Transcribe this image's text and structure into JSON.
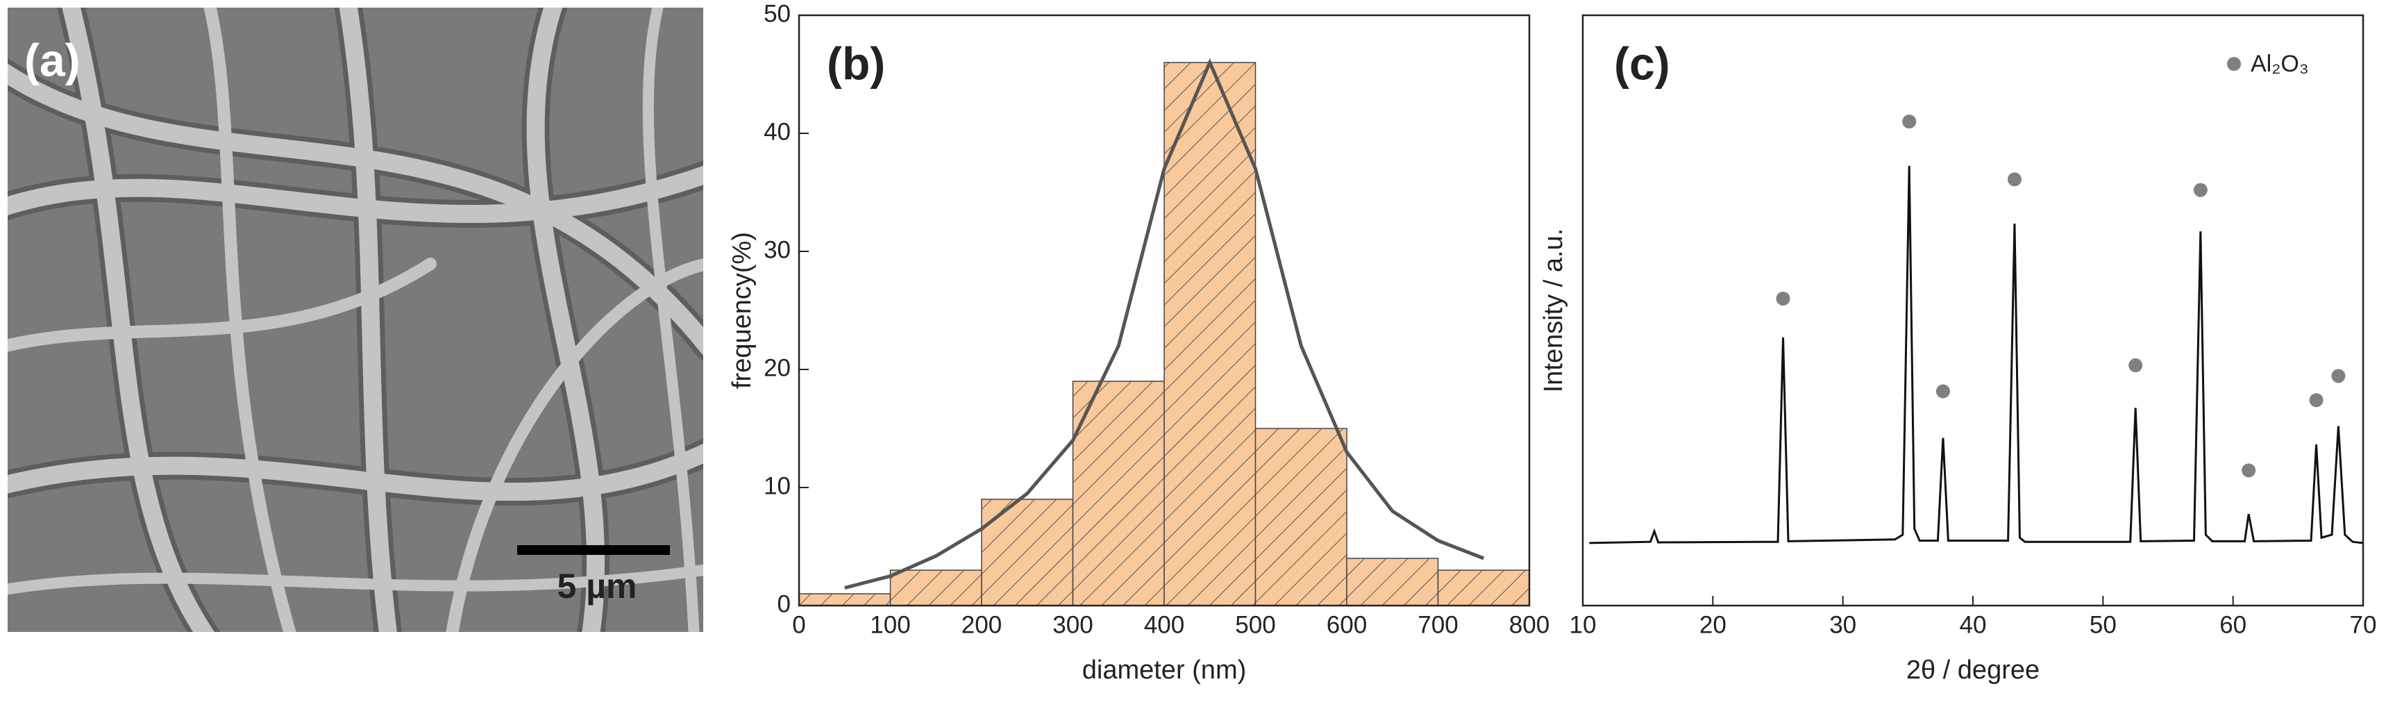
{
  "chart_data": [
    {
      "type": "image",
      "label": "(a)",
      "scale_bar": "5 µm"
    },
    {
      "type": "histogram",
      "label": "(b)",
      "x_label": "diameter (nm)",
      "y_label": "frequency(%)",
      "bins": [
        0,
        100,
        200,
        300,
        400,
        500,
        600,
        700,
        800
      ],
      "values": [
        1,
        3,
        9,
        19,
        46,
        15,
        4,
        3
      ],
      "color": "#f9c89b",
      "fit": {
        "color": "#555555",
        "x": [
          50,
          100,
          150,
          200,
          250,
          300,
          350,
          400,
          450,
          500,
          550,
          600,
          650,
          700,
          750
        ],
        "values": [
          1.5,
          2.5,
          4.2,
          6.5,
          9.5,
          14,
          22,
          37,
          46,
          37,
          22,
          13,
          8,
          5.5,
          4
        ]
      },
      "xlim": [
        0,
        800
      ],
      "xticks": [
        0,
        100,
        200,
        300,
        400,
        500,
        600,
        700,
        800
      ],
      "ylim": [
        0,
        50
      ],
      "yticks": [
        0,
        10,
        20,
        30,
        40,
        50
      ]
    },
    {
      "type": "line",
      "label": "(c)",
      "x_label": "2θ / degree",
      "y_label": "Intensity / a.u.",
      "color": "#111111",
      "x": [
        10.5,
        15.2,
        15.5,
        15.8,
        25.0,
        25.4,
        25.8,
        34.0,
        34.6,
        35.1,
        35.5,
        35.9,
        37.3,
        37.7,
        38.1,
        42.7,
        43.2,
        43.6,
        44.0,
        52.1,
        52.5,
        52.9,
        57.0,
        57.5,
        57.9,
        58.4,
        60.9,
        61.2,
        61.6,
        66.0,
        66.4,
        66.8,
        67.6,
        68.1,
        68.6,
        69.2,
        70
      ],
      "values": [
        10.6,
        10.8,
        12.6,
        10.7,
        10.8,
        45.4,
        10.9,
        11.2,
        12,
        74.5,
        13,
        11,
        11,
        28.4,
        11,
        11,
        64.7,
        11.5,
        10.8,
        10.8,
        33.5,
        10.9,
        11,
        63.4,
        12,
        10.9,
        10.9,
        15.5,
        10.9,
        11,
        27.3,
        11.5,
        12,
        30.4,
        12,
        10.8,
        10.6
      ],
      "markers": {
        "name": "Al₂O₃",
        "color": "#808080",
        "x": [
          25.4,
          35.1,
          37.7,
          43.2,
          52.5,
          57.5,
          61.2,
          66.4,
          68.1
        ],
        "values": [
          52,
          82,
          36.3,
          72.2,
          40.7,
          70.4,
          22.9,
          34.8,
          38.9
        ]
      },
      "xlim": [
        10,
        70
      ],
      "xticks": [
        10,
        20,
        30,
        40,
        50,
        60,
        70
      ],
      "ylim": [
        0,
        100
      ]
    }
  ]
}
